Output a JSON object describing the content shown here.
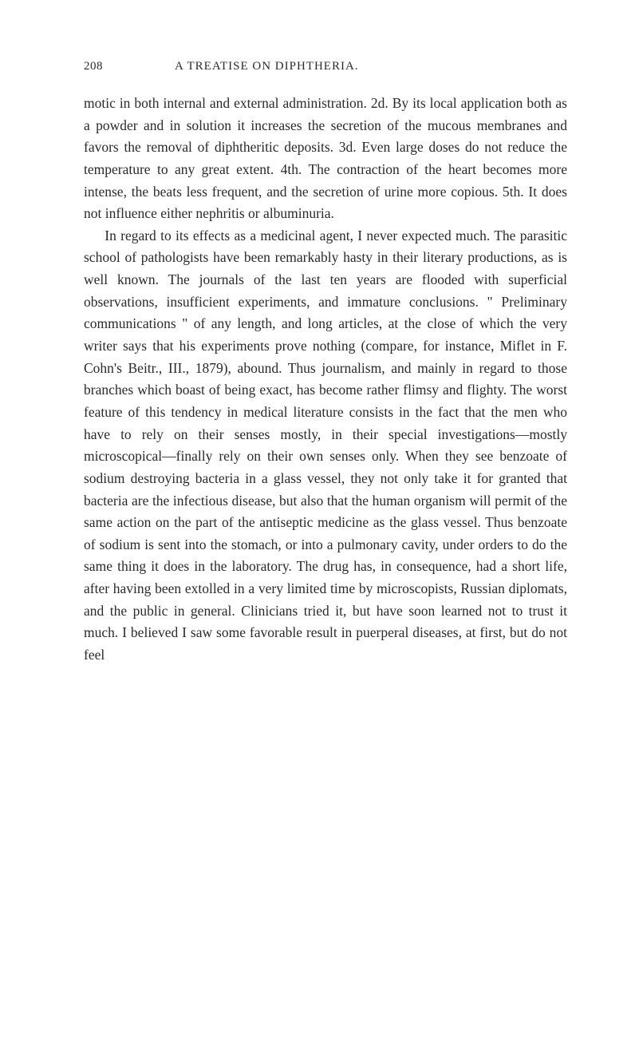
{
  "page": {
    "number": "208",
    "running_title": "A TREATISE ON DIPHTHERIA.",
    "background_color": "#ffffff",
    "text_color": "#2a2a2a",
    "font_family": "Georgia, 'Times New Roman', serif",
    "body_fontsize": 17.5,
    "header_fontsize": 15,
    "line_height": 1.58
  },
  "paragraphs": {
    "p1": "motic in both internal and external administration. 2d. By its local application both as a powder and in solution it increases the secretion of the mucous membranes and favors the removal of diphtheritic deposits. 3d. Even large doses do not reduce the temperature to any great extent. 4th. The contraction of the heart becomes more intense, the beats less frequent, and the secretion of urine more copious. 5th. It does not influence either nephritis or albuminuria.",
    "p2": "In regard to its effects as a medicinal agent, I never expected much. The parasitic school of pathologists have been remarkably hasty in their literary productions, as is well known. The journals of the last ten years are flooded with superficial observations, insufficient experiments, and immature conclusions. \" Preliminary communications \" of any length, and long articles, at the close of which the very writer says that his experiments prove nothing (compare, for instance, Miflet in F. Cohn's Beitr., III., 1879), abound. Thus journalism, and mainly in regard to those branches which boast of being exact, has become rather flimsy and flighty. The worst feature of this tendency in medical literature consists in the fact that the men who have to rely on their senses mostly, in their special investigations—mostly microscopical—finally rely on their own senses only. When they see benzoate of sodium destroying bacteria in a glass vessel, they not only take it for granted that bacteria are the infectious disease, but also that the human organism will permit of the same action on the part of the antiseptic medicine as the glass vessel. Thus benzoate of sodium is sent into the stomach, or into a pulmonary cavity, under orders to do the same thing it does in the laboratory. The drug has, in consequence, had a short life, after having been extolled in a very limited time by microscopists, Russian diplomats, and the public in general. Clinicians tried it, but have soon learned not to trust it much. I believed I saw some favorable result in puerperal diseases, at first, but do not feel"
  }
}
